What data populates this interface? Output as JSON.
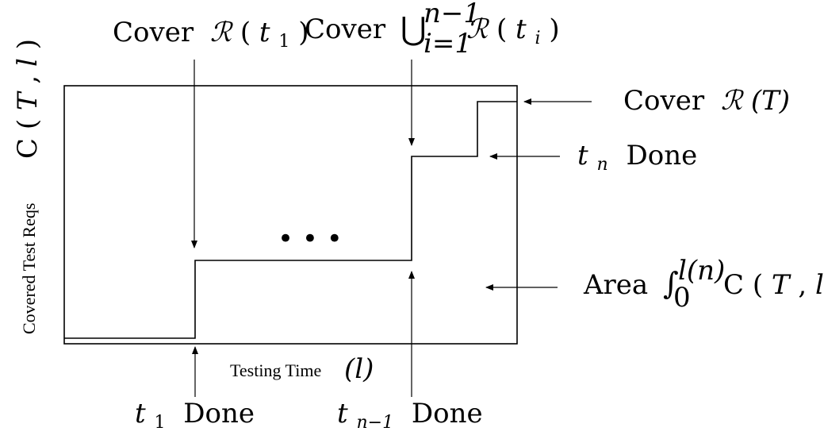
{
  "diagram": {
    "top_labels": {
      "cover_first": {
        "word": "Cover",
        "symbol": "ℛ",
        "arg_open": "(",
        "arg_var": "t",
        "arg_sub": "1",
        "arg_close": ")"
      },
      "cover_union": {
        "word": "Cover",
        "op": "⋃",
        "upper": "n−1",
        "lower": "i=1",
        "symbol": "ℛ",
        "arg_open": "(",
        "arg_var": "t",
        "arg_sub": "i",
        "arg_close": ")"
      }
    },
    "right_labels": {
      "cover_all": {
        "word": "Cover",
        "symbol": "ℛ",
        "arg": "(T)"
      },
      "tn_done": {
        "var": "t",
        "sub": "n",
        "word": "Done"
      },
      "area": {
        "word": "Area",
        "integral": "∫",
        "upper": "l(n)",
        "lower": "0",
        "func": "C",
        "arg_open": "(",
        "arg_var1": "T",
        "arg_sep": ", ",
        "arg_var2": "l",
        "arg_close": ")"
      }
    },
    "bottom_labels": {
      "t1_done": {
        "var": "t",
        "sub": "1",
        "word": "Done"
      },
      "tn1_done": {
        "var": "t",
        "sub": "n−1",
        "word": "Done"
      },
      "x_axis_text": "Testing Time",
      "x_axis_symbol": "(l)"
    },
    "y_axis": {
      "text": "Covered Test Reqs",
      "func": "C",
      "arg_open": "(",
      "arg_var1": "T",
      "arg_sep": ",",
      "arg_var2": "l",
      "arg_close": ")"
    },
    "ellipsis": "•   •   •"
  }
}
